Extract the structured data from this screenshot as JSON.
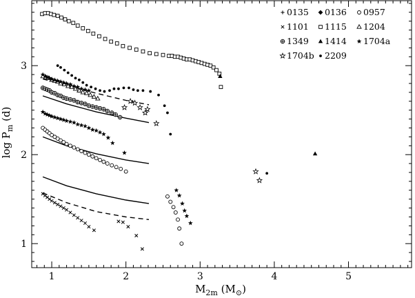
{
  "chart_data": {
    "type": "scatter",
    "xlabel_main": "M",
    "xlabel_sub": "2m",
    "xlabel_unit_open": " (M",
    "xlabel_unit_sub": "⊙",
    "xlabel_unit_close": ")",
    "ylabel_main": "log P",
    "ylabel_sub": "m",
    "ylabel_unit": " (d)",
    "xlim": [
      0.73,
      5.85
    ],
    "ylim": [
      0.73,
      3.73
    ],
    "x_ticks": [
      1,
      2,
      3,
      4,
      5
    ],
    "x_tick_labels": [
      "1",
      "2",
      "3",
      "4",
      "5"
    ],
    "y_ticks": [
      1,
      2,
      3
    ],
    "y_tick_labels": [
      "1",
      "2",
      "3"
    ],
    "x_minor_step": 0.1,
    "y_minor_step": 0.1,
    "legend_position": "top-right",
    "series": [
      {
        "name": "0135",
        "marker": "plus",
        "points": []
      },
      {
        "name": "0136",
        "marker": "diamond",
        "points": []
      },
      {
        "name": "0957",
        "marker": "circle-open",
        "points": [
          [
            0.88,
            2.3
          ],
          [
            0.91,
            2.28
          ],
          [
            0.94,
            2.26
          ],
          [
            0.97,
            2.24
          ],
          [
            1.0,
            2.22
          ],
          [
            1.04,
            2.2
          ],
          [
            1.08,
            2.18
          ],
          [
            1.12,
            2.16
          ],
          [
            1.16,
            2.14
          ],
          [
            1.2,
            2.12
          ],
          [
            1.25,
            2.1
          ],
          [
            1.3,
            2.08
          ],
          [
            1.35,
            2.06
          ],
          [
            1.4,
            2.04
          ],
          [
            1.45,
            2.02
          ],
          [
            1.5,
            2.0
          ],
          [
            1.55,
            1.98
          ],
          [
            1.6,
            1.96
          ],
          [
            1.65,
            1.94
          ],
          [
            1.7,
            1.92
          ],
          [
            1.75,
            1.9
          ],
          [
            1.81,
            1.88
          ],
          [
            1.87,
            1.86
          ],
          [
            1.93,
            1.84
          ],
          [
            2.0,
            1.81
          ],
          [
            2.56,
            1.53
          ],
          [
            2.6,
            1.47
          ],
          [
            2.64,
            1.41
          ],
          [
            2.67,
            1.35
          ],
          [
            2.7,
            1.27
          ],
          [
            2.72,
            1.17
          ],
          [
            2.75,
            1.0
          ]
        ]
      },
      {
        "name": "1101",
        "marker": "cross",
        "points": [
          [
            0.88,
            1.56
          ],
          [
            0.91,
            1.54
          ],
          [
            0.94,
            1.52
          ],
          [
            0.97,
            1.5
          ],
          [
            1.0,
            1.48
          ],
          [
            1.04,
            1.46
          ],
          [
            1.08,
            1.44
          ],
          [
            1.12,
            1.42
          ],
          [
            1.16,
            1.4
          ],
          [
            1.2,
            1.38
          ],
          [
            1.25,
            1.35
          ],
          [
            1.3,
            1.32
          ],
          [
            1.35,
            1.29
          ],
          [
            1.4,
            1.26
          ],
          [
            1.45,
            1.23
          ],
          [
            1.5,
            1.19
          ],
          [
            1.57,
            1.15
          ],
          [
            1.9,
            1.25
          ],
          [
            1.96,
            1.24
          ],
          [
            2.03,
            1.19
          ],
          [
            2.14,
            1.09
          ],
          [
            2.22,
            0.94
          ]
        ]
      },
      {
        "name": "1115",
        "marker": "square-open",
        "points": [
          [
            0.87,
            3.58
          ],
          [
            0.91,
            3.59
          ],
          [
            0.95,
            3.59
          ],
          [
            0.99,
            3.58
          ],
          [
            1.03,
            3.57
          ],
          [
            1.08,
            3.56
          ],
          [
            1.13,
            3.54
          ],
          [
            1.18,
            3.52
          ],
          [
            1.23,
            3.5
          ],
          [
            1.29,
            3.48
          ],
          [
            1.35,
            3.45
          ],
          [
            1.42,
            3.42
          ],
          [
            1.49,
            3.39
          ],
          [
            1.56,
            3.36
          ],
          [
            1.64,
            3.33
          ],
          [
            1.72,
            3.3
          ],
          [
            1.8,
            3.27
          ],
          [
            1.88,
            3.25
          ],
          [
            1.96,
            3.22
          ],
          [
            2.05,
            3.2
          ],
          [
            2.14,
            3.18
          ],
          [
            2.23,
            3.16
          ],
          [
            2.32,
            3.14
          ],
          [
            2.41,
            3.13
          ],
          [
            2.5,
            3.12
          ],
          [
            2.58,
            3.11
          ],
          [
            2.62,
            3.11
          ],
          [
            2.66,
            3.1
          ],
          [
            2.7,
            3.1
          ],
          [
            2.74,
            3.09
          ],
          [
            2.78,
            3.08
          ],
          [
            2.82,
            3.07
          ],
          [
            2.86,
            3.07
          ],
          [
            2.9,
            3.06
          ],
          [
            2.94,
            3.05
          ],
          [
            2.98,
            3.04
          ],
          [
            3.02,
            3.03
          ],
          [
            3.06,
            3.02
          ],
          [
            3.1,
            3.01
          ],
          [
            3.14,
            3.0
          ],
          [
            3.18,
            2.98
          ],
          [
            3.22,
            2.95
          ],
          [
            3.26,
            2.91
          ],
          [
            3.28,
            2.76
          ]
        ]
      },
      {
        "name": "1204",
        "marker": "triangle-open",
        "points": [
          [
            0.88,
            2.88
          ],
          [
            0.92,
            2.87
          ],
          [
            0.96,
            2.86
          ],
          [
            1.0,
            2.84
          ],
          [
            1.04,
            2.83
          ],
          [
            1.08,
            2.82
          ],
          [
            1.12,
            2.8
          ],
          [
            1.17,
            2.79
          ],
          [
            1.22,
            2.77
          ],
          [
            1.27,
            2.76
          ],
          [
            1.32,
            2.74
          ],
          [
            1.37,
            2.72
          ],
          [
            1.42,
            2.7
          ],
          [
            1.47,
            2.69
          ],
          [
            1.52,
            2.67
          ],
          [
            1.57,
            2.65
          ],
          [
            1.62,
            2.63
          ]
        ]
      },
      {
        "name": "1349",
        "marker": "circle-plus",
        "points": [
          [
            0.88,
            2.75
          ],
          [
            0.91,
            2.74
          ],
          [
            0.94,
            2.73
          ],
          [
            0.97,
            2.72
          ],
          [
            1.0,
            2.7
          ],
          [
            1.04,
            2.69
          ],
          [
            1.08,
            2.67
          ],
          [
            1.12,
            2.66
          ],
          [
            1.16,
            2.64
          ],
          [
            1.2,
            2.63
          ],
          [
            1.25,
            2.62
          ],
          [
            1.3,
            2.61
          ],
          [
            1.35,
            2.59
          ],
          [
            1.4,
            2.58
          ],
          [
            1.45,
            2.57
          ],
          [
            1.5,
            2.55
          ],
          [
            1.55,
            2.54
          ],
          [
            1.6,
            2.53
          ],
          [
            1.65,
            2.52
          ],
          [
            1.7,
            2.51
          ],
          [
            1.75,
            2.49
          ],
          [
            1.81,
            2.47
          ],
          [
            1.86,
            2.45
          ],
          [
            1.92,
            2.42
          ]
        ]
      },
      {
        "name": "1414",
        "marker": "triangle-filled",
        "points": [
          [
            3.27,
            2.88
          ],
          [
            4.55,
            2.01
          ]
        ]
      },
      {
        "name": "1704a",
        "marker": "star-filled",
        "points": [
          [
            0.88,
            2.9
          ],
          [
            0.91,
            2.88
          ],
          [
            0.94,
            2.87
          ],
          [
            0.97,
            2.86
          ],
          [
            1.0,
            2.85
          ],
          [
            1.04,
            2.84
          ],
          [
            1.08,
            2.83
          ],
          [
            1.12,
            2.82
          ],
          [
            1.16,
            2.81
          ],
          [
            1.2,
            2.8
          ],
          [
            1.25,
            2.79
          ],
          [
            1.3,
            2.77
          ],
          [
            1.35,
            2.76
          ],
          [
            1.4,
            2.74
          ],
          [
            1.45,
            2.73
          ],
          [
            1.5,
            2.72
          ],
          [
            0.88,
            2.48
          ],
          [
            0.91,
            2.46
          ],
          [
            0.94,
            2.45
          ],
          [
            0.97,
            2.44
          ],
          [
            1.0,
            2.43
          ],
          [
            1.04,
            2.42
          ],
          [
            1.08,
            2.41
          ],
          [
            1.12,
            2.4
          ],
          [
            1.16,
            2.39
          ],
          [
            1.2,
            2.38
          ],
          [
            1.25,
            2.37
          ],
          [
            1.3,
            2.36
          ],
          [
            1.35,
            2.34
          ],
          [
            1.4,
            2.33
          ],
          [
            1.45,
            2.32
          ],
          [
            1.5,
            2.3
          ],
          [
            1.55,
            2.28
          ],
          [
            1.6,
            2.27
          ],
          [
            1.65,
            2.25
          ],
          [
            1.7,
            2.23
          ],
          [
            1.76,
            2.19
          ],
          [
            1.82,
            2.13
          ],
          [
            1.98,
            2.02
          ],
          [
            2.68,
            1.6
          ],
          [
            2.72,
            1.54
          ],
          [
            2.76,
            1.45
          ],
          [
            2.79,
            1.37
          ],
          [
            2.82,
            1.31
          ],
          [
            2.87,
            1.23
          ]
        ]
      },
      {
        "name": "1704b",
        "marker": "star-open",
        "points": [
          [
            1.98,
            2.53
          ],
          [
            2.06,
            2.6
          ],
          [
            2.12,
            2.58
          ],
          [
            2.19,
            2.53
          ],
          [
            2.26,
            2.47
          ],
          [
            2.29,
            2.51
          ],
          [
            2.41,
            2.35
          ],
          [
            3.75,
            1.81
          ],
          [
            3.8,
            1.71
          ]
        ]
      },
      {
        "name": "2209",
        "marker": "dot",
        "points": [
          [
            1.08,
            3.0
          ],
          [
            1.12,
            2.98
          ],
          [
            1.17,
            2.95
          ],
          [
            1.22,
            2.92
          ],
          [
            1.27,
            2.89
          ],
          [
            1.32,
            2.86
          ],
          [
            1.37,
            2.84
          ],
          [
            1.42,
            2.81
          ],
          [
            1.47,
            2.78
          ],
          [
            1.53,
            2.76
          ],
          [
            1.59,
            2.74
          ],
          [
            1.65,
            2.72
          ],
          [
            1.71,
            2.71
          ],
          [
            1.78,
            2.72
          ],
          [
            1.84,
            2.74
          ],
          [
            1.9,
            2.74
          ],
          [
            1.97,
            2.75
          ],
          [
            2.04,
            2.75
          ],
          [
            2.1,
            2.73
          ],
          [
            2.16,
            2.72
          ],
          [
            2.23,
            2.72
          ],
          [
            2.33,
            2.71
          ],
          [
            2.44,
            2.67
          ],
          [
            2.52,
            2.55
          ],
          [
            2.56,
            2.47
          ],
          [
            2.6,
            2.23
          ],
          [
            3.9,
            1.79
          ]
        ]
      }
    ],
    "model_curves": [
      {
        "style": "dashed",
        "points": [
          [
            0.88,
            2.85
          ],
          [
            1.2,
            2.78
          ],
          [
            1.6,
            2.69
          ],
          [
            2.0,
            2.61
          ],
          [
            2.31,
            2.56
          ]
        ]
      },
      {
        "style": "solid",
        "points": [
          [
            0.88,
            2.66
          ],
          [
            1.2,
            2.57
          ],
          [
            1.6,
            2.48
          ],
          [
            2.0,
            2.41
          ],
          [
            2.31,
            2.36
          ]
        ]
      },
      {
        "style": "solid",
        "points": [
          [
            0.88,
            2.2
          ],
          [
            1.2,
            2.1
          ],
          [
            1.6,
            2.01
          ],
          [
            2.0,
            1.94
          ],
          [
            2.31,
            1.9
          ]
        ]
      },
      {
        "style": "solid",
        "points": [
          [
            0.88,
            1.75
          ],
          [
            1.2,
            1.65
          ],
          [
            1.6,
            1.56
          ],
          [
            2.0,
            1.49
          ],
          [
            2.31,
            1.45
          ]
        ]
      },
      {
        "style": "dashed",
        "points": [
          [
            0.88,
            1.57
          ],
          [
            1.2,
            1.46
          ],
          [
            1.6,
            1.36
          ],
          [
            2.0,
            1.3
          ],
          [
            2.31,
            1.27
          ]
        ]
      }
    ]
  }
}
